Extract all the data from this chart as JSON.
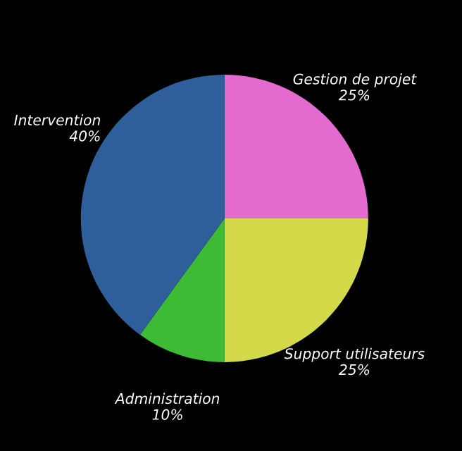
{
  "chart_data": {
    "type": "pie",
    "categories": [
      "Gestion de projet",
      "Support utilisateurs",
      "Administration",
      "Intervention"
    ],
    "values": [
      25,
      25,
      10,
      40
    ],
    "colors": [
      "#e36bd0",
      "#d4d94a",
      "#3dbb35",
      "#2f5f9a"
    ],
    "value_labels": [
      "25%",
      "25%",
      "10%",
      "40%"
    ]
  }
}
